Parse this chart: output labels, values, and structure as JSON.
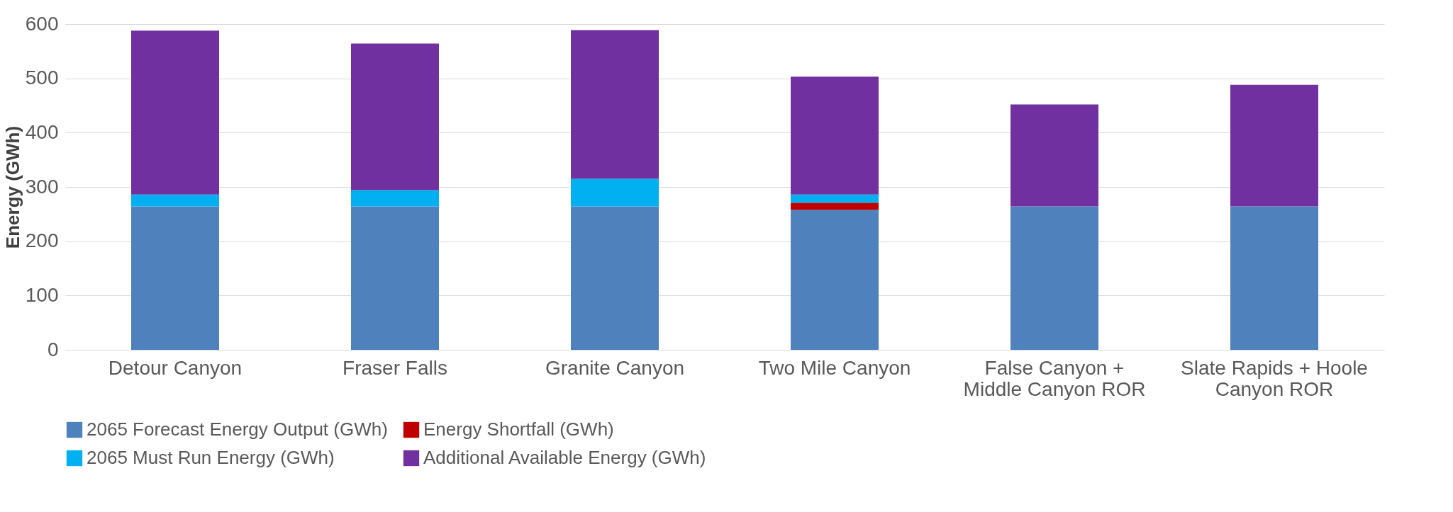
{
  "chart_data": {
    "type": "bar",
    "ylabel": "Energy (GWh)",
    "stacked": true,
    "categories": [
      "Detour Canyon",
      "Fraser Falls",
      "Granite Canyon",
      "Two Mile Canyon",
      "False Canyon + Middle Canyon ROR",
      "Slate Rapids + Hoole Canyon ROR"
    ],
    "series": [
      {
        "name": "2065 Forecast Energy Output (GWh)",
        "color": "#4f81bd",
        "values": [
          264,
          264,
          264,
          258,
          264,
          264
        ]
      },
      {
        "name": "Energy Shortfall (GWh)",
        "color": "#c00000",
        "values": [
          0,
          0,
          0,
          13,
          0,
          0
        ]
      },
      {
        "name": "2065 Must Run Energy (GWh)",
        "color": "#00b0f0",
        "values": [
          22,
          30,
          51,
          15,
          0,
          0
        ]
      },
      {
        "name": "Additional Available Energy (GWh)",
        "color": "#7030a0",
        "values": [
          302,
          270,
          274,
          217,
          188,
          224
        ]
      }
    ],
    "ylim": [
      0,
      600
    ],
    "yticks": [
      0,
      100,
      200,
      300,
      400,
      500,
      600
    ],
    "grid": "y",
    "legend": "bottom"
  }
}
